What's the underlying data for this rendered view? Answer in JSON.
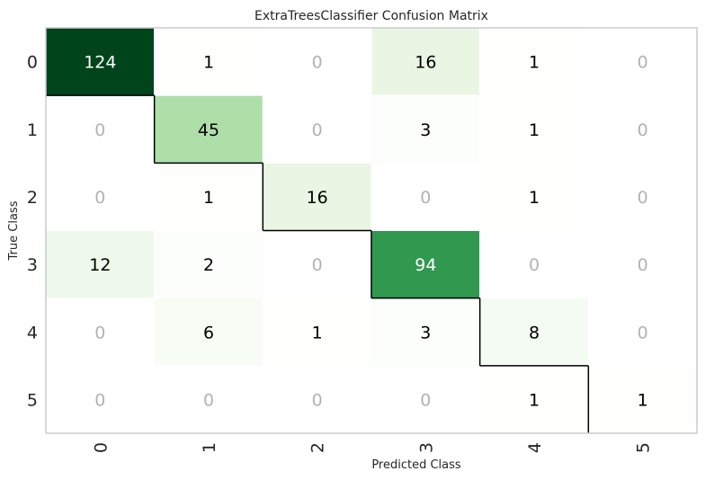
{
  "chart_data": {
    "type": "heatmap",
    "title": "ExtraTreesClassifier Confusion Matrix",
    "xlabel": "Predicted Class",
    "ylabel": "True Class",
    "x_categories": [
      "0",
      "1",
      "2",
      "3",
      "4",
      "5"
    ],
    "y_categories": [
      "0",
      "1",
      "2",
      "3",
      "4",
      "5"
    ],
    "values": [
      [
        124,
        1,
        0,
        16,
        1,
        0
      ],
      [
        0,
        45,
        0,
        3,
        1,
        0
      ],
      [
        0,
        1,
        16,
        0,
        1,
        0
      ],
      [
        12,
        2,
        0,
        94,
        0,
        0
      ],
      [
        0,
        6,
        1,
        3,
        8,
        0
      ],
      [
        0,
        0,
        0,
        0,
        1,
        1
      ]
    ],
    "colormap": "Greens",
    "zero_text_color": "#b3b3b3",
    "diagonal_outline": true,
    "grid": false
  }
}
